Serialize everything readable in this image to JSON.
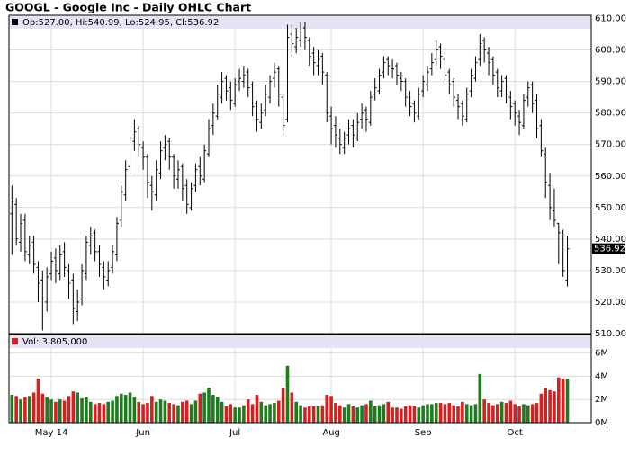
{
  "chart_data": {
    "type": "ohlc",
    "title": "GOOGL - Google Inc - Daily OHLC Chart",
    "legend": "Op:527.00, Hi:540.99, Lo:524.95, Cl:536.92",
    "volume_title": "Vol: 3,805,000",
    "last_price": 536.92,
    "bar_color": "#000000",
    "up_color": "#1e7b1e",
    "down_color": "#d42020",
    "grid": true,
    "categories": [
      null,
      null,
      null,
      null,
      null,
      null,
      null,
      null,
      null,
      "May 14",
      null,
      null,
      null,
      null,
      null,
      null,
      null,
      null,
      null,
      null,
      null,
      null,
      null,
      null,
      null,
      null,
      null,
      null,
      null,
      null,
      "Jun",
      null,
      null,
      null,
      null,
      null,
      null,
      null,
      null,
      null,
      null,
      null,
      null,
      null,
      null,
      null,
      null,
      null,
      null,
      null,
      null,
      "Jul",
      null,
      null,
      null,
      null,
      null,
      null,
      null,
      null,
      null,
      null,
      null,
      null,
      null,
      null,
      null,
      null,
      null,
      null,
      null,
      null,
      null,
      "Aug",
      null,
      null,
      null,
      null,
      null,
      null,
      null,
      null,
      null,
      null,
      null,
      null,
      null,
      null,
      null,
      null,
      null,
      null,
      null,
      null,
      "Sep",
      null,
      null,
      null,
      null,
      null,
      null,
      null,
      null,
      null,
      null,
      null,
      null,
      null,
      null,
      null,
      null,
      null,
      null,
      null,
      null,
      "Oct",
      null,
      null,
      null,
      null,
      null,
      null,
      null,
      null,
      null,
      null,
      null,
      null
    ],
    "open": [
      548,
      551,
      539,
      546,
      535,
      539,
      531,
      527,
      520,
      529,
      534,
      529,
      536,
      530,
      527,
      517,
      521,
      529,
      538,
      542,
      536,
      531,
      527,
      531,
      535,
      546,
      554,
      563,
      571,
      575,
      569,
      566,
      557,
      554,
      561,
      569,
      571,
      566,
      559,
      563,
      557,
      550,
      557,
      563,
      559,
      567,
      576,
      579,
      585,
      591,
      588,
      583,
      590,
      590,
      593,
      589,
      583,
      577,
      581,
      585,
      591,
      594,
      585,
      578,
      605,
      601,
      603,
      607,
      603,
      599,
      595,
      598,
      592,
      579,
      576,
      572,
      569,
      573,
      576,
      572,
      578,
      581,
      577,
      586,
      587,
      593,
      597,
      594,
      595,
      591,
      590,
      586,
      583,
      579,
      587,
      589,
      594,
      597,
      601,
      597,
      593,
      590,
      584,
      583,
      578,
      587,
      591,
      597,
      603,
      599,
      597,
      593,
      587,
      591,
      585,
      583,
      579,
      576,
      585,
      589,
      584,
      576,
      567,
      557,
      549,
      545,
      541,
      527
    ],
    "high": [
      557,
      553,
      548,
      548,
      541,
      541,
      533,
      530,
      531,
      536,
      537,
      538,
      539,
      532,
      529,
      524,
      532,
      541,
      544,
      543,
      538,
      533,
      533,
      538,
      547,
      557,
      565,
      575,
      578,
      576,
      571,
      567,
      560,
      565,
      571,
      573,
      572,
      567,
      565,
      564,
      559,
      558,
      564,
      566,
      570,
      578,
      583,
      589,
      593,
      592,
      590,
      591,
      594,
      595,
      594,
      590,
      584,
      583,
      589,
      592,
      596,
      595,
      586,
      608,
      608,
      607,
      609,
      609,
      604,
      601,
      600,
      599,
      593,
      582,
      579,
      575,
      574,
      578,
      578,
      580,
      583,
      582,
      587,
      591,
      594,
      598,
      598,
      597,
      596,
      593,
      591,
      587,
      584,
      588,
      592,
      595,
      599,
      603,
      602,
      598,
      594,
      591,
      586,
      584,
      588,
      594,
      598,
      605,
      604,
      601,
      598,
      594,
      592,
      592,
      587,
      584,
      581,
      586,
      590,
      590,
      586,
      578,
      569,
      561,
      556,
      545,
      543,
      540.99
    ],
    "low": [
      535,
      538,
      536,
      533,
      532,
      529,
      520,
      511,
      517,
      527,
      526,
      527,
      528,
      521,
      513,
      514,
      519,
      527,
      535,
      533,
      528,
      524,
      525,
      529,
      533,
      544,
      552,
      561,
      568,
      566,
      562,
      553,
      549,
      552,
      559,
      565,
      562,
      556,
      556,
      552,
      548,
      549,
      555,
      557,
      558,
      566,
      573,
      578,
      583,
      584,
      581,
      582,
      587,
      588,
      585,
      579,
      574,
      575,
      579,
      583,
      588,
      582,
      573,
      577,
      598,
      599,
      601,
      600,
      595,
      592,
      592,
      589,
      577,
      570,
      569,
      567,
      567,
      570,
      569,
      571,
      575,
      574,
      576,
      584,
      586,
      591,
      592,
      591,
      589,
      587,
      582,
      579,
      577,
      578,
      585,
      587,
      592,
      595,
      594,
      589,
      586,
      582,
      578,
      576,
      577,
      585,
      590,
      595,
      596,
      592,
      589,
      585,
      585,
      583,
      578,
      576,
      573,
      575,
      582,
      580,
      572,
      566,
      553,
      546,
      544,
      532,
      528,
      524.95
    ],
    "close": [
      552,
      540,
      545,
      536,
      538,
      532,
      526,
      521,
      528,
      533,
      530,
      535,
      531,
      526,
      518,
      520,
      530,
      539,
      541,
      536,
      532,
      528,
      530,
      536,
      545,
      555,
      562,
      572,
      574,
      570,
      566,
      558,
      555,
      562,
      568,
      570,
      566,
      560,
      562,
      556,
      551,
      556,
      562,
      560,
      568,
      575,
      580,
      586,
      590,
      587,
      584,
      589,
      591,
      592,
      588,
      582,
      578,
      580,
      586,
      590,
      593,
      586,
      576,
      604,
      602,
      604,
      606,
      604,
      598,
      596,
      597,
      593,
      580,
      575,
      573,
      570,
      572,
      575,
      573,
      577,
      580,
      578,
      585,
      588,
      592,
      596,
      595,
      594,
      592,
      590,
      585,
      582,
      580,
      586,
      590,
      593,
      596,
      600,
      598,
      592,
      589,
      585,
      582,
      579,
      586,
      592,
      596,
      602,
      600,
      596,
      592,
      588,
      590,
      586,
      582,
      580,
      577,
      584,
      588,
      583,
      575,
      568,
      558,
      550,
      546,
      542,
      530,
      536.92
    ],
    "volume": [
      2400000,
      2300000,
      2000000,
      2200000,
      2300000,
      2600000,
      3800000,
      2500000,
      2200000,
      2000000,
      1800000,
      2000000,
      1900000,
      2300000,
      2700000,
      2600000,
      2100000,
      2200000,
      1800000,
      1600000,
      1700000,
      1600000,
      1800000,
      1900000,
      2300000,
      2500000,
      2400000,
      2600000,
      2200000,
      1800000,
      1600000,
      1700000,
      2300000,
      1800000,
      2000000,
      1900000,
      1700000,
      1600000,
      1500000,
      1800000,
      1900000,
      1600000,
      1900000,
      2500000,
      2600000,
      3000000,
      2400000,
      2200000,
      1800000,
      1400000,
      1600000,
      1300000,
      1300000,
      1500000,
      2000000,
      1600000,
      2400000,
      1800000,
      1500000,
      1600000,
      1700000,
      1900000,
      3000000,
      4900000,
      2600000,
      1800000,
      1500000,
      1300000,
      1400000,
      1400000,
      1400000,
      1500000,
      2400000,
      2300000,
      1700000,
      1500000,
      1300000,
      1600000,
      1400000,
      1300000,
      1500000,
      1600000,
      1900000,
      1400000,
      1500000,
      1600000,
      1800000,
      1300000,
      1300000,
      1200000,
      1400000,
      1500000,
      1400000,
      1300000,
      1500000,
      1600000,
      1600000,
      1700000,
      1700000,
      1600000,
      1700000,
      1500000,
      1400000,
      1800000,
      1600000,
      1500000,
      1600000,
      4200000,
      2000000,
      1700000,
      1500000,
      1600000,
      1800000,
      1700000,
      1900000,
      1600000,
      1400000,
      1600000,
      1500000,
      1600000,
      1700000,
      2500000,
      3000000,
      2800000,
      2700000,
      3900000,
      3800000,
      3805000
    ],
    "ylim": [
      510,
      611
    ],
    "yticks": [
      {
        "value": 510,
        "label": "510.00"
      },
      {
        "value": 520,
        "label": "520.00"
      },
      {
        "value": 530,
        "label": "530.00"
      },
      {
        "value": 540,
        "label": "540.00"
      },
      {
        "value": 550,
        "label": "550.00"
      },
      {
        "value": 560,
        "label": "560.00"
      },
      {
        "value": 570,
        "label": "570.00"
      },
      {
        "value": 580,
        "label": "580.00"
      },
      {
        "value": 590,
        "label": "590.00"
      },
      {
        "value": 600,
        "label": "600.00"
      },
      {
        "value": 610,
        "label": "610.00"
      }
    ],
    "y2lim": [
      0,
      7600000
    ],
    "y2ticks": [
      {
        "value": 0,
        "label": "0M"
      },
      {
        "value": 2000000,
        "label": "2M"
      },
      {
        "value": 4000000,
        "label": "4M"
      },
      {
        "value": 6000000,
        "label": "6M"
      }
    ]
  }
}
